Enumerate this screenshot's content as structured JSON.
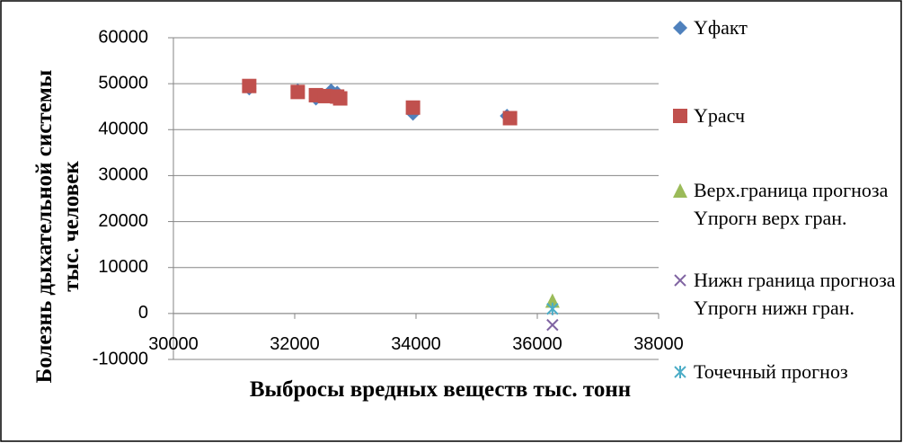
{
  "chart_data": {
    "type": "scatter",
    "x_label": "Выбросы вредных веществ тыс. тонн",
    "y_label": "Болезнь дыхательной системы тыс. человек",
    "xlim": [
      30000,
      38000
    ],
    "xticks": [
      30000,
      32000,
      34000,
      36000,
      38000
    ],
    "ylim": [
      -10000,
      60000
    ],
    "yticks": [
      -10000,
      0,
      10000,
      20000,
      30000,
      40000,
      50000,
      60000
    ],
    "grid": true,
    "legend": "right",
    "series": [
      {
        "name": "Yфакт",
        "color": "#4f81bd",
        "marker": "diamond",
        "x": [
          31250,
          32050,
          32350,
          32600,
          32700,
          33950,
          35500
        ],
        "values": [
          49000,
          48500,
          46800,
          48500,
          48000,
          43500,
          43000
        ]
      },
      {
        "name": "Yрасч",
        "color": "#c0504d",
        "marker": "square",
        "x": [
          31250,
          32050,
          32350,
          32500,
          32700,
          32750,
          33950,
          35550
        ],
        "values": [
          49500,
          48200,
          47500,
          47300,
          47200,
          46800,
          44800,
          42500
        ]
      },
      {
        "name": "Верх.граница прогноза Yпрогн верх гран.",
        "color": "#9bbb59",
        "marker": "triangle",
        "x": [
          36250
        ],
        "values": [
          2800
        ]
      },
      {
        "name": "Нижн граница прогноза Yпрогн нижн гран.",
        "color": "#8064a2",
        "marker": "x",
        "x": [
          36250
        ],
        "values": [
          -2500
        ]
      },
      {
        "name": "Точечный прогноз",
        "color": "#4bacc6",
        "marker": "asterisk",
        "x": [
          36250
        ],
        "values": [
          1000
        ]
      }
    ]
  }
}
